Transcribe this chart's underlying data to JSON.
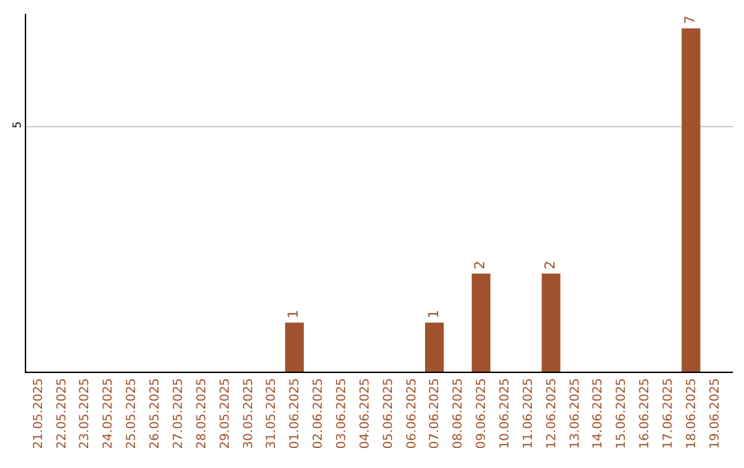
{
  "chart_data": {
    "type": "bar",
    "categories": [
      "21.05.2025",
      "22.05.2025",
      "23.05.2025",
      "24.05.2025",
      "25.05.2025",
      "26.05.2025",
      "27.05.2025",
      "28.05.2025",
      "29.05.2025",
      "30.05.2025",
      "31.05.2025",
      "01.06.2025",
      "02.06.2025",
      "03.06.2025",
      "04.06.2025",
      "05.06.2025",
      "06.06.2025",
      "07.06.2025",
      "08.06.2025",
      "09.06.2025",
      "10.06.2025",
      "11.06.2025",
      "12.06.2025",
      "13.06.2025",
      "14.06.2025",
      "15.06.2025",
      "16.06.2025",
      "17.06.2025",
      "18.06.2025",
      "19.06.2025"
    ],
    "values": [
      0,
      0,
      0,
      0,
      0,
      0,
      0,
      0,
      0,
      0,
      0,
      1,
      0,
      0,
      0,
      0,
      0,
      1,
      0,
      2,
      0,
      0,
      2,
      0,
      0,
      0,
      0,
      0,
      7,
      0
    ],
    "value_labels": [
      null,
      null,
      null,
      null,
      null,
      null,
      null,
      null,
      null,
      null,
      null,
      "1",
      null,
      null,
      null,
      null,
      null,
      "1",
      null,
      "2",
      null,
      null,
      "2",
      null,
      null,
      null,
      null,
      null,
      "7",
      null
    ],
    "color": "#a0522d",
    "ylim": [
      0,
      7.3
    ],
    "yticks": [
      5
    ],
    "grid": "y"
  }
}
